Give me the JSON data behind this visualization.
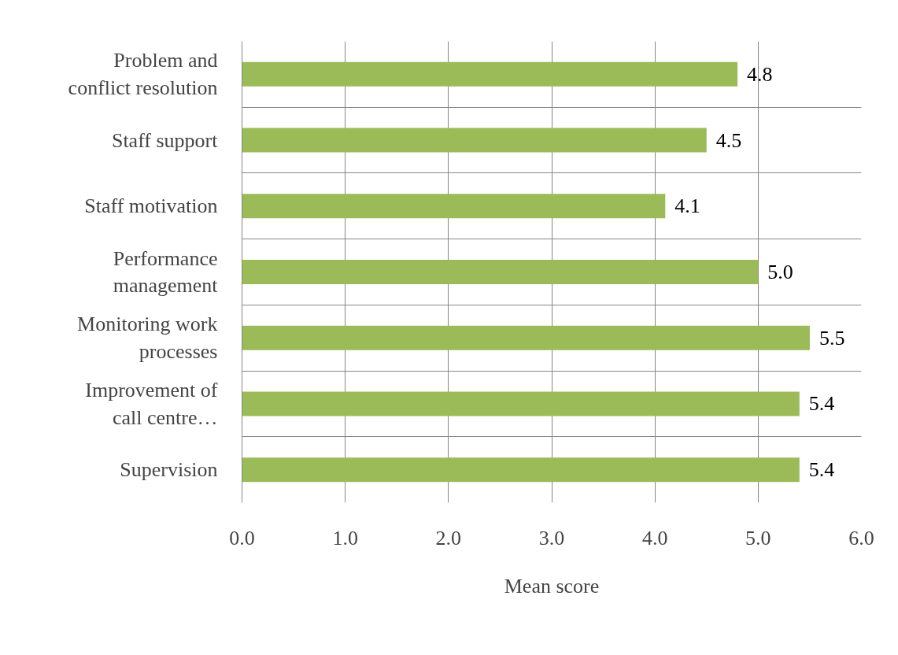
{
  "chart_data": {
    "type": "bar",
    "orientation": "horizontal",
    "xlabel": "Mean score",
    "categories": [
      "Problem and\nconflict resolution",
      "Staff support",
      "Staff motivation",
      "Performance\nmanagement",
      "Monitoring work\nprocesses",
      "Improvement of\ncall centre…",
      "Supervision"
    ],
    "values": [
      4.8,
      4.5,
      4.1,
      5.0,
      5.5,
      5.4,
      5.4
    ],
    "value_labels": [
      "4.8",
      "4.5",
      "4.1",
      "5.0",
      "5.5",
      "5.4",
      "5.4"
    ],
    "color": "#9bbb59",
    "xlim": [
      0,
      6
    ],
    "xticks": [
      {
        "value": 0,
        "label": "0.0"
      },
      {
        "value": 1,
        "label": "1.0"
      },
      {
        "value": 2,
        "label": "2.0"
      },
      {
        "value": 3,
        "label": "3.0"
      },
      {
        "value": 4,
        "label": "4.0"
      },
      {
        "value": 5,
        "label": "5.0"
      },
      {
        "value": 6,
        "label": "6.0"
      }
    ],
    "grid": true
  }
}
